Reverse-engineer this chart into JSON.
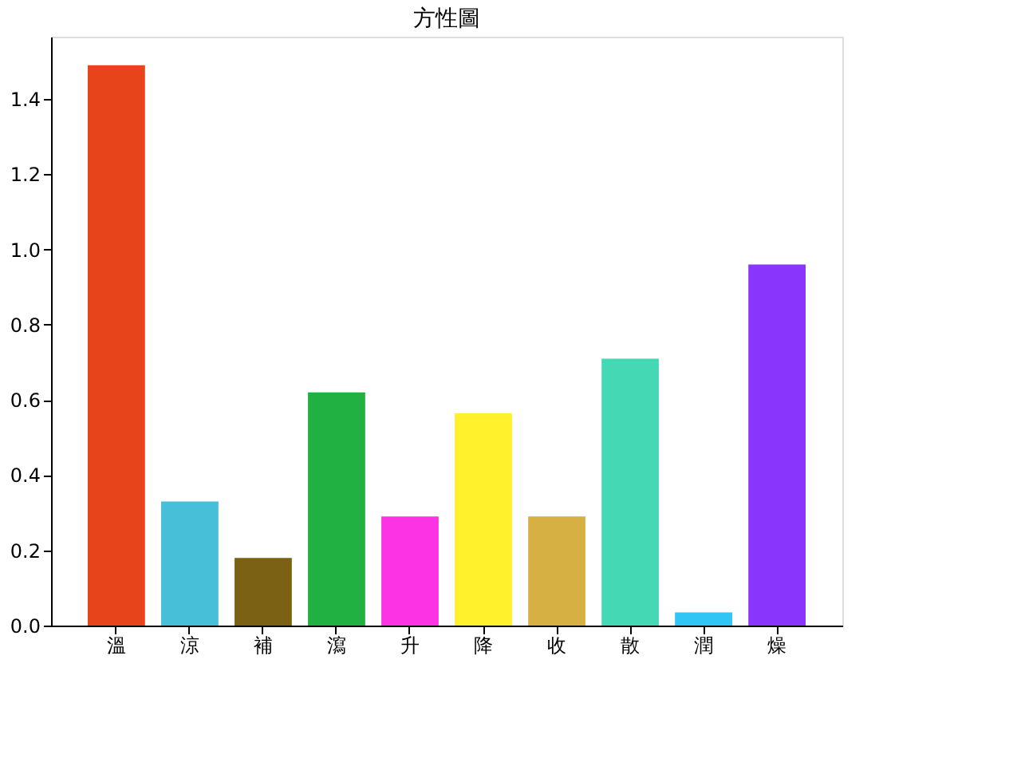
{
  "chart_data": {
    "type": "bar",
    "title": "方性圖",
    "categories": [
      "溫",
      "涼",
      "補",
      "瀉",
      "升",
      "降",
      "收",
      "散",
      "潤",
      "燥"
    ],
    "values": [
      1.49,
      0.33,
      0.18,
      0.62,
      0.29,
      0.565,
      0.29,
      0.71,
      0.035,
      0.96
    ],
    "colors": [
      "#e8441c",
      "#47bfd9",
      "#7b6114",
      "#20b142",
      "#fb33e5",
      "#fff12c",
      "#d6b042",
      "#44d8b4",
      "#31c5f5",
      "#8a35fb"
    ],
    "ylim": [
      0,
      1.566
    ],
    "yticks": [
      {
        "value": 0,
        "label": "0.0"
      },
      {
        "value": 0.2,
        "label": "0.2"
      },
      {
        "value": 0.4,
        "label": "0.4"
      },
      {
        "value": 0.6,
        "label": "0.6"
      },
      {
        "value": 0.8,
        "label": "0.8"
      },
      {
        "value": 1.0,
        "label": "1.0"
      },
      {
        "value": 1.2,
        "label": "1.2"
      },
      {
        "value": 1.4,
        "label": "1.4"
      }
    ],
    "grid": false
  }
}
